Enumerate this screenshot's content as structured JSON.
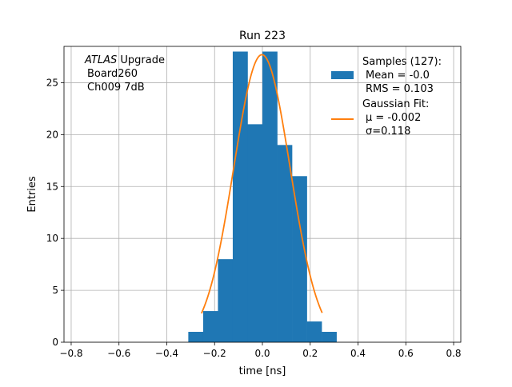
{
  "chart_data": {
    "type": "bar",
    "title": "Run 223",
    "xlabel": "time [ns]",
    "ylabel": "Entries",
    "xlim": [
      -0.83,
      0.83
    ],
    "ylim": [
      0,
      28.5
    ],
    "xticks": [
      -0.8,
      -0.6,
      -0.4,
      -0.2,
      0.0,
      0.2,
      0.4,
      0.6,
      0.8
    ],
    "xtick_labels": [
      "−0.8",
      "−0.6",
      "−0.4",
      "−0.2",
      "0.0",
      "0.2",
      "0.4",
      "0.6",
      "0.8"
    ],
    "yticks": [
      0,
      5,
      10,
      15,
      20,
      25
    ],
    "yticks_labels": [
      "0",
      "5",
      "10",
      "15",
      "20",
      "25"
    ],
    "grid": true,
    "annotation": {
      "line1_italic": "ATLAS",
      "line1_rest": " Upgrade",
      "line2": "Board260",
      "line3": "Ch009 7dB"
    },
    "histogram": {
      "name": "Samples (127):",
      "stats": [
        "Mean = -0.0",
        "RMS = 0.103"
      ],
      "color": "#1f77b4",
      "bin_edges": [
        -0.31,
        -0.248,
        -0.186,
        -0.124,
        -0.062,
        0.0,
        0.062,
        0.124,
        0.186,
        0.248,
        0.31
      ],
      "counts": [
        1,
        3,
        8,
        28,
        21,
        28,
        19,
        16,
        2,
        1
      ]
    },
    "fit": {
      "name": "Gaussian Fit:",
      "mu_label": "μ = -0.002",
      "sigma_label": "σ=0.118",
      "color": "#ff7f0e",
      "mu": -0.002,
      "sigma": 0.118,
      "amplitude": 27.7,
      "x_range": [
        -0.255,
        0.25
      ]
    },
    "legend_position": "upper-right"
  }
}
